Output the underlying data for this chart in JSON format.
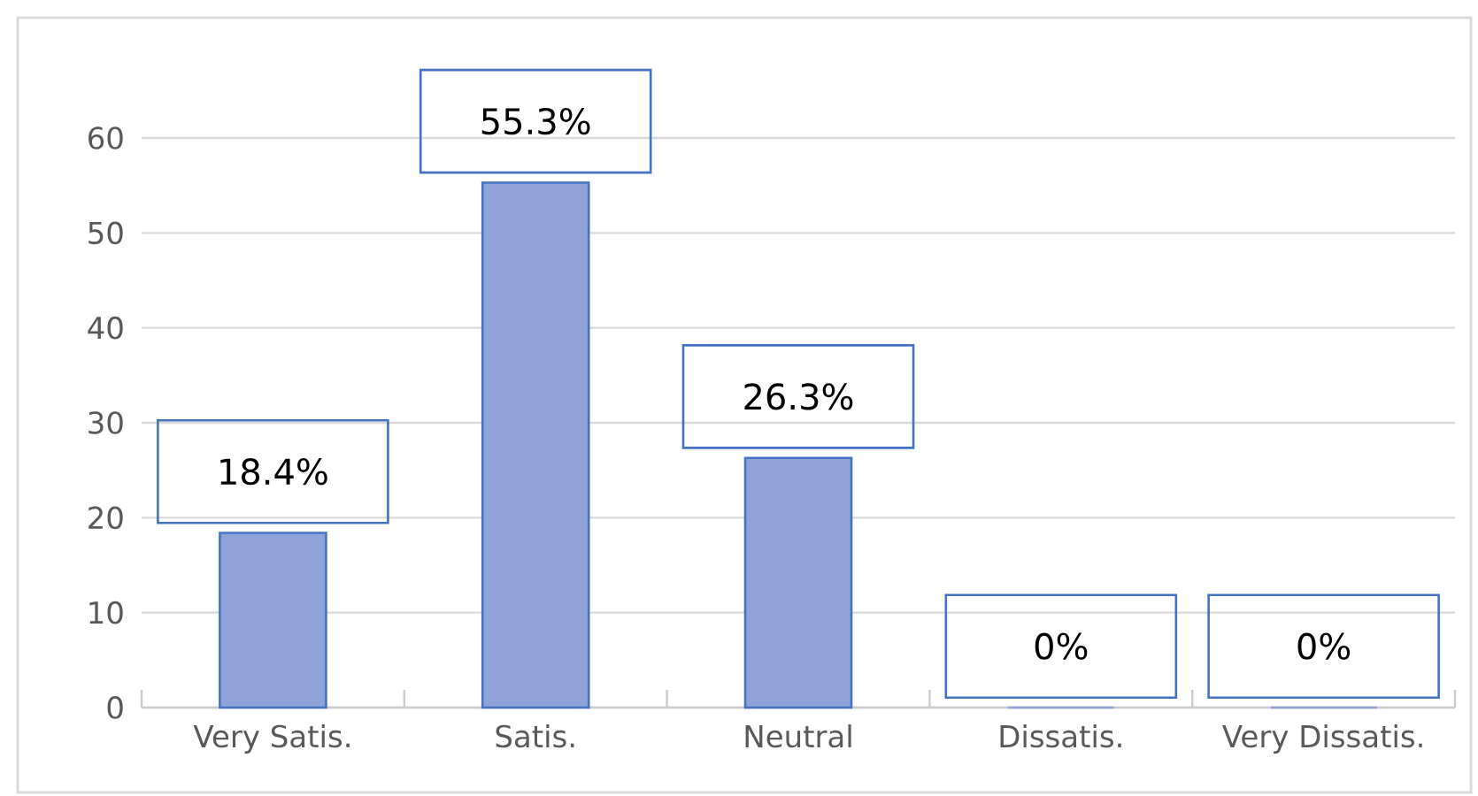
{
  "chart_data": {
    "type": "bar",
    "categories": [
      "Very Satis.",
      "Satis.",
      "Neutral",
      "Dissatis.",
      "Very Dissatis."
    ],
    "values": [
      18.4,
      55.3,
      26.3,
      0,
      0
    ],
    "value_labels": [
      "18.4%",
      "55.3%",
      "26.3%",
      "0%",
      "0%"
    ],
    "color": "#8fa3d8",
    "ylim": [
      0,
      60
    ],
    "yticks": [
      0,
      10,
      20,
      30,
      40,
      50,
      60
    ],
    "grid": "y"
  }
}
